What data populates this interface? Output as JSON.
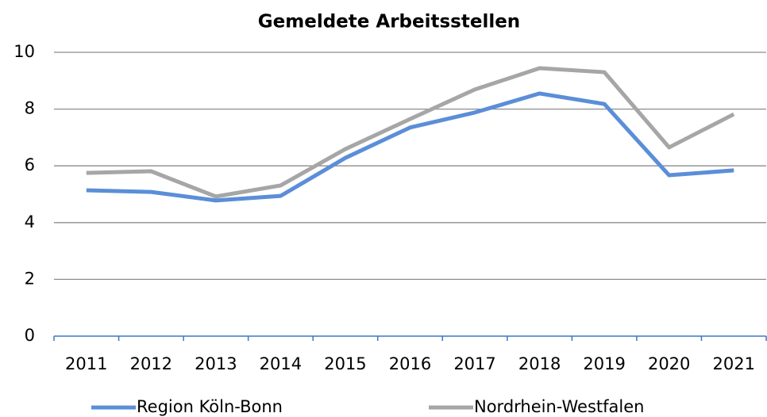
{
  "chart_data": {
    "type": "line",
    "title": "Gemeldete Arbeitsstellen",
    "categories": [
      "2011",
      "2012",
      "2013",
      "2014",
      "2015",
      "2016",
      "2017",
      "2018",
      "2019",
      "2020",
      "2021"
    ],
    "series": [
      {
        "name": "Region Köln-Bonn",
        "color": "#5b8ed8",
        "values": [
          5.14,
          5.08,
          4.78,
          4.94,
          6.28,
          7.35,
          7.88,
          8.55,
          8.18,
          5.67,
          5.84
        ]
      },
      {
        "name": "Nordrhein-Westfalen",
        "color": "#a6a6a6",
        "values": [
          5.75,
          5.81,
          4.92,
          5.31,
          6.59,
          7.65,
          8.69,
          9.44,
          9.3,
          6.65,
          7.82
        ]
      }
    ],
    "ylim": [
      0,
      10
    ],
    "yticks": [
      0,
      2,
      4,
      6,
      8,
      10
    ],
    "grid": true,
    "legend": "bottom"
  }
}
